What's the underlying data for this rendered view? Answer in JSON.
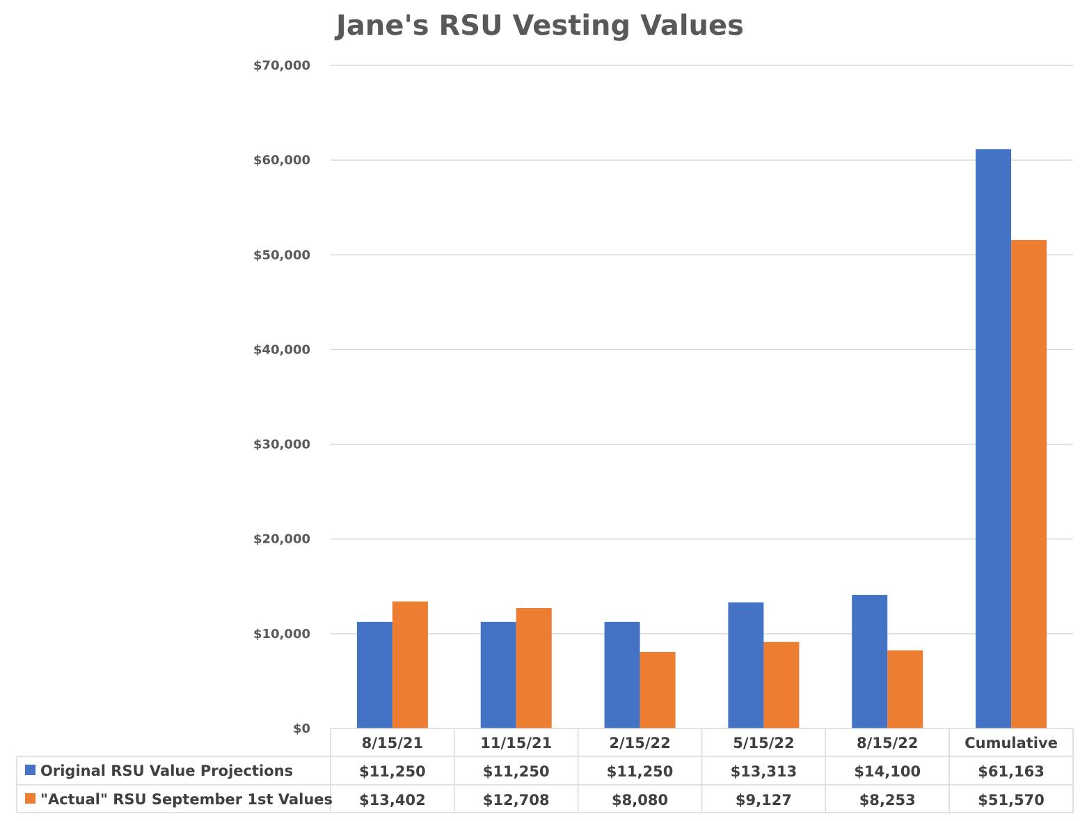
{
  "chart_data": {
    "type": "bar",
    "title": "Jane's RSU Vesting Values",
    "categories": [
      "8/15/21",
      "11/15/21",
      "2/15/22",
      "5/15/22",
      "8/15/22",
      "Cumulative"
    ],
    "series": [
      {
        "name": "Original RSU Value Projections",
        "color": "#4472C4",
        "values": [
          11250,
          11250,
          11250,
          13313,
          14100,
          61163
        ],
        "labels": [
          "$11,250",
          "$11,250",
          "$11,250",
          "$13,313",
          "$14,100",
          "$61,163"
        ]
      },
      {
        "name": "\"Actual\" RSU September 1st Values",
        "color": "#ED7D31",
        "values": [
          13402,
          12708,
          8080,
          9127,
          8253,
          51570
        ],
        "labels": [
          "$13,402",
          "$12,708",
          "$8,080",
          "$9,127",
          "$8,253",
          "$51,570"
        ]
      }
    ],
    "ylim": [
      0,
      70000
    ],
    "yticks": [
      0,
      10000,
      20000,
      30000,
      40000,
      50000,
      60000,
      70000
    ],
    "ytick_labels": [
      "$0",
      "$10,000",
      "$20,000",
      "$30,000",
      "$40,000",
      "$50,000",
      "$60,000",
      "$70,000"
    ],
    "grid": true,
    "legend": "data-table"
  }
}
